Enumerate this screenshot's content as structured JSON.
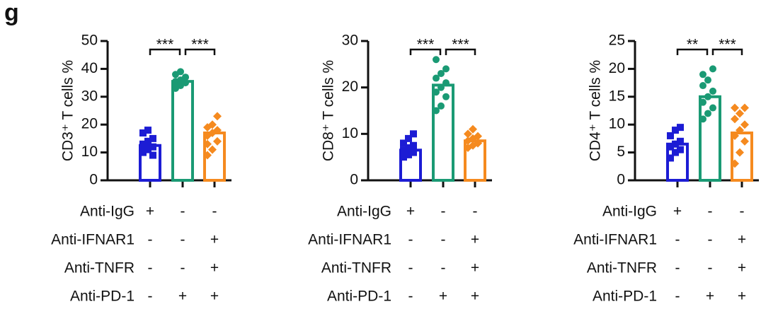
{
  "panel_label": "g",
  "chart_data": [
    {
      "type": "bar",
      "ylabel": "CD3⁺ T cells %",
      "ylim": [
        0,
        50
      ],
      "yticks": [
        0,
        10,
        20,
        30,
        40,
        50
      ],
      "values": [
        12.5,
        35.5,
        17
      ],
      "colors": [
        "#1c1cd4",
        "#1a9a74",
        "#f58a1f"
      ],
      "markers": [
        "square",
        "circle",
        "diamond"
      ],
      "points": [
        [
          10,
          11,
          12,
          13,
          14,
          15,
          17,
          18,
          9,
          11
        ],
        [
          33,
          34,
          35,
          35.5,
          36,
          37,
          38,
          39,
          37,
          34
        ],
        [
          9,
          11,
          14,
          16,
          17,
          18,
          19,
          20,
          23,
          13
        ]
      ],
      "significance": [
        "***",
        "***"
      ],
      "treatments": [
        {
          "name": "Anti-IgG",
          "signs": [
            "+",
            "-",
            "-"
          ]
        },
        {
          "name": "Anti-IFNAR1",
          "signs": [
            "-",
            "-",
            "+"
          ]
        },
        {
          "name": "Anti-TNFR",
          "signs": [
            "-",
            "-",
            "+"
          ]
        },
        {
          "name": "Anti-PD-1",
          "signs": [
            "-",
            "+",
            "+"
          ]
        }
      ]
    },
    {
      "type": "bar",
      "ylabel": "CD8⁺ T cells %",
      "ylim": [
        0,
        30
      ],
      "yticks": [
        0,
        10,
        20,
        30
      ],
      "values": [
        6.5,
        20.5,
        8.5
      ],
      "colors": [
        "#1c1cd4",
        "#1a9a74",
        "#f58a1f"
      ],
      "markers": [
        "square",
        "circle",
        "diamond"
      ],
      "points": [
        [
          5,
          5.5,
          6,
          6.5,
          7,
          7.5,
          8,
          9,
          10,
          6
        ],
        [
          15,
          16,
          18,
          19,
          20,
          21,
          22,
          23,
          24,
          26
        ],
        [
          7,
          7.5,
          8,
          8.5,
          9,
          9.5,
          10,
          11,
          8
        ]
      ],
      "significance": [
        "***",
        "***"
      ],
      "treatments": [
        {
          "name": "Anti-IgG",
          "signs": [
            "+",
            "-",
            "-"
          ]
        },
        {
          "name": "Anti-IFNAR1",
          "signs": [
            "-",
            "-",
            "+"
          ]
        },
        {
          "name": "Anti-TNFR",
          "signs": [
            "-",
            "-",
            "+"
          ]
        },
        {
          "name": "Anti-PD-1",
          "signs": [
            "-",
            "+",
            "+"
          ]
        }
      ]
    },
    {
      "type": "bar",
      "ylabel": "CD4⁺ T cells %",
      "ylim": [
        0,
        25
      ],
      "yticks": [
        0,
        5,
        10,
        15,
        20,
        25
      ],
      "values": [
        6.5,
        15,
        8.5
      ],
      "colors": [
        "#1c1cd4",
        "#1a9a74",
        "#f58a1f"
      ],
      "markers": [
        "square",
        "circle",
        "diamond"
      ],
      "points": [
        [
          4,
          5,
          5.5,
          6,
          6.5,
          7,
          8,
          9,
          9.5
        ],
        [
          11,
          12,
          13,
          14,
          15,
          16,
          17,
          18,
          20,
          19
        ],
        [
          3,
          5,
          7,
          8,
          9,
          10,
          11,
          12,
          13,
          13
        ]
      ],
      "significance": [
        "**",
        "***"
      ],
      "treatments": [
        {
          "name": "Anti-IgG",
          "signs": [
            "+",
            "-",
            "-"
          ]
        },
        {
          "name": "Anti-IFNAR1",
          "signs": [
            "-",
            "-",
            "+"
          ]
        },
        {
          "name": "Anti-TNFR",
          "signs": [
            "-",
            "-",
            "+"
          ]
        },
        {
          "name": "Anti-PD-1",
          "signs": [
            "-",
            "+",
            "+"
          ]
        }
      ]
    }
  ]
}
